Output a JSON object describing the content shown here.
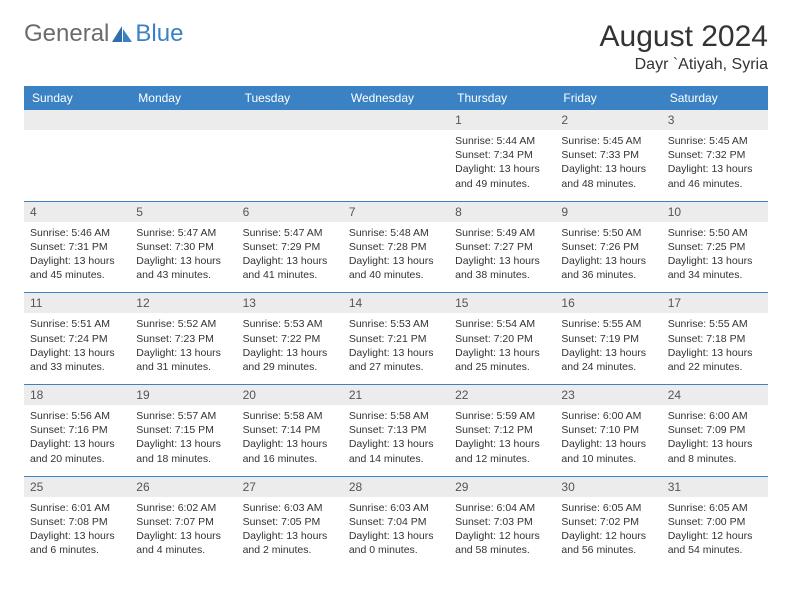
{
  "logo": {
    "general": "General",
    "blue": "Blue"
  },
  "title": "August 2024",
  "location": "Dayr `Atiyah, Syria",
  "day_headers": [
    "Sunday",
    "Monday",
    "Tuesday",
    "Wednesday",
    "Thursday",
    "Friday",
    "Saturday"
  ],
  "colors": {
    "header_bg": "#3b82c4",
    "header_text": "#ffffff",
    "numrow_bg": "#ececec",
    "divider": "#3b82c4",
    "body_text": "#333333"
  },
  "fonts": {
    "title_size": 30,
    "location_size": 16,
    "header_size": 12,
    "cell_size": 10.5
  },
  "weeks": [
    [
      null,
      null,
      null,
      null,
      {
        "n": "1",
        "sr": "5:44 AM",
        "ss": "7:34 PM",
        "dl": "13 hours and 49 minutes."
      },
      {
        "n": "2",
        "sr": "5:45 AM",
        "ss": "7:33 PM",
        "dl": "13 hours and 48 minutes."
      },
      {
        "n": "3",
        "sr": "5:45 AM",
        "ss": "7:32 PM",
        "dl": "13 hours and 46 minutes."
      }
    ],
    [
      {
        "n": "4",
        "sr": "5:46 AM",
        "ss": "7:31 PM",
        "dl": "13 hours and 45 minutes."
      },
      {
        "n": "5",
        "sr": "5:47 AM",
        "ss": "7:30 PM",
        "dl": "13 hours and 43 minutes."
      },
      {
        "n": "6",
        "sr": "5:47 AM",
        "ss": "7:29 PM",
        "dl": "13 hours and 41 minutes."
      },
      {
        "n": "7",
        "sr": "5:48 AM",
        "ss": "7:28 PM",
        "dl": "13 hours and 40 minutes."
      },
      {
        "n": "8",
        "sr": "5:49 AM",
        "ss": "7:27 PM",
        "dl": "13 hours and 38 minutes."
      },
      {
        "n": "9",
        "sr": "5:50 AM",
        "ss": "7:26 PM",
        "dl": "13 hours and 36 minutes."
      },
      {
        "n": "10",
        "sr": "5:50 AM",
        "ss": "7:25 PM",
        "dl": "13 hours and 34 minutes."
      }
    ],
    [
      {
        "n": "11",
        "sr": "5:51 AM",
        "ss": "7:24 PM",
        "dl": "13 hours and 33 minutes."
      },
      {
        "n": "12",
        "sr": "5:52 AM",
        "ss": "7:23 PM",
        "dl": "13 hours and 31 minutes."
      },
      {
        "n": "13",
        "sr": "5:53 AM",
        "ss": "7:22 PM",
        "dl": "13 hours and 29 minutes."
      },
      {
        "n": "14",
        "sr": "5:53 AM",
        "ss": "7:21 PM",
        "dl": "13 hours and 27 minutes."
      },
      {
        "n": "15",
        "sr": "5:54 AM",
        "ss": "7:20 PM",
        "dl": "13 hours and 25 minutes."
      },
      {
        "n": "16",
        "sr": "5:55 AM",
        "ss": "7:19 PM",
        "dl": "13 hours and 24 minutes."
      },
      {
        "n": "17",
        "sr": "5:55 AM",
        "ss": "7:18 PM",
        "dl": "13 hours and 22 minutes."
      }
    ],
    [
      {
        "n": "18",
        "sr": "5:56 AM",
        "ss": "7:16 PM",
        "dl": "13 hours and 20 minutes."
      },
      {
        "n": "19",
        "sr": "5:57 AM",
        "ss": "7:15 PM",
        "dl": "13 hours and 18 minutes."
      },
      {
        "n": "20",
        "sr": "5:58 AM",
        "ss": "7:14 PM",
        "dl": "13 hours and 16 minutes."
      },
      {
        "n": "21",
        "sr": "5:58 AM",
        "ss": "7:13 PM",
        "dl": "13 hours and 14 minutes."
      },
      {
        "n": "22",
        "sr": "5:59 AM",
        "ss": "7:12 PM",
        "dl": "13 hours and 12 minutes."
      },
      {
        "n": "23",
        "sr": "6:00 AM",
        "ss": "7:10 PM",
        "dl": "13 hours and 10 minutes."
      },
      {
        "n": "24",
        "sr": "6:00 AM",
        "ss": "7:09 PM",
        "dl": "13 hours and 8 minutes."
      }
    ],
    [
      {
        "n": "25",
        "sr": "6:01 AM",
        "ss": "7:08 PM",
        "dl": "13 hours and 6 minutes."
      },
      {
        "n": "26",
        "sr": "6:02 AM",
        "ss": "7:07 PM",
        "dl": "13 hours and 4 minutes."
      },
      {
        "n": "27",
        "sr": "6:03 AM",
        "ss": "7:05 PM",
        "dl": "13 hours and 2 minutes."
      },
      {
        "n": "28",
        "sr": "6:03 AM",
        "ss": "7:04 PM",
        "dl": "13 hours and 0 minutes."
      },
      {
        "n": "29",
        "sr": "6:04 AM",
        "ss": "7:03 PM",
        "dl": "12 hours and 58 minutes."
      },
      {
        "n": "30",
        "sr": "6:05 AM",
        "ss": "7:02 PM",
        "dl": "12 hours and 56 minutes."
      },
      {
        "n": "31",
        "sr": "6:05 AM",
        "ss": "7:00 PM",
        "dl": "12 hours and 54 minutes."
      }
    ]
  ],
  "labels": {
    "sunrise": "Sunrise: ",
    "sunset": "Sunset: ",
    "daylight": "Daylight: "
  }
}
